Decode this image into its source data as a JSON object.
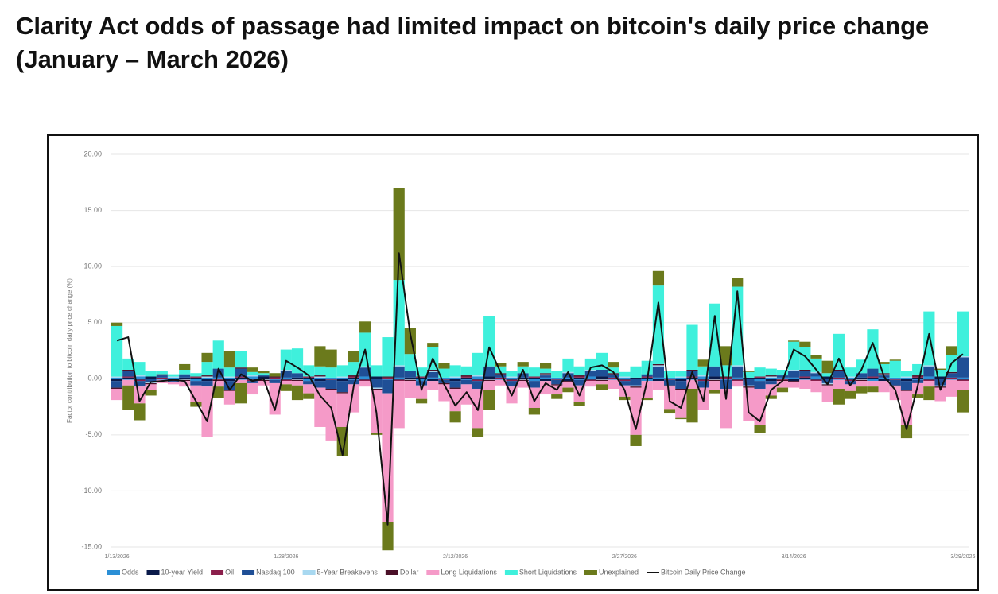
{
  "chart_data": {
    "type": "bar",
    "stacked": true,
    "title": "Clarity Act odds of passage had limited impact on bitcoin's daily price change (January – March 2026)",
    "y_label": "Factor contribution to bitcoin daily price change (%)",
    "ylim": [
      -15,
      20
    ],
    "yticks": [
      {
        "value": -15,
        "label": "-15.00"
      },
      {
        "value": -10,
        "label": "-10.00"
      },
      {
        "value": -5,
        "label": "-5.00"
      },
      {
        "value": 0,
        "label": "0.00"
      },
      {
        "value": 5,
        "label": "5.00"
      },
      {
        "value": 10,
        "label": "10.00"
      },
      {
        "value": 15,
        "label": "15.00"
      },
      {
        "value": 20,
        "label": "20.00"
      }
    ],
    "grid": true,
    "legend": "bottom",
    "categories": [
      "1/13/2026",
      null,
      null,
      null,
      null,
      null,
      null,
      null,
      null,
      null,
      null,
      null,
      null,
      null,
      null,
      "1/28/2026",
      null,
      null,
      null,
      null,
      null,
      null,
      null,
      null,
      null,
      null,
      null,
      null,
      null,
      null,
      "2/12/2026",
      null,
      null,
      null,
      null,
      null,
      null,
      null,
      null,
      null,
      null,
      null,
      null,
      null,
      null,
      "2/27/2026",
      null,
      null,
      null,
      null,
      null,
      null,
      null,
      null,
      null,
      null,
      null,
      null,
      null,
      null,
      "3/14/2026",
      null,
      null,
      null,
      null,
      null,
      null,
      null,
      null,
      null,
      null,
      null,
      null,
      null,
      null,
      "3/29/2026"
    ],
    "series": [
      {
        "name": "Odds",
        "color": "#2b8fd6",
        "values": [
          0.1,
          -0.1,
          0.2,
          0.0,
          -0.1,
          0.1,
          0.0,
          -0.2,
          0.1,
          0.1,
          0.1,
          -0.1,
          0.2,
          0.0,
          -0.1,
          0.1,
          0.0,
          -0.2,
          0.1,
          0.1,
          0.1,
          -0.1,
          0.2,
          0.0,
          -0.1,
          0.1,
          0.0,
          -0.2,
          0.1,
          0.1,
          0.1,
          -0.1,
          0.2,
          0.0,
          -0.1,
          0.1,
          0.0,
          -0.2,
          0.1,
          0.1,
          0.1,
          -0.1,
          0.2,
          0.0,
          -0.1,
          0.1,
          0.0,
          -0.2,
          0.1,
          0.1,
          0.1,
          -0.1,
          0.2,
          0.0,
          -0.1,
          0.1,
          0.0,
          -0.2,
          0.1,
          0.1,
          0.1,
          -0.1,
          0.2,
          0.0,
          -0.1,
          0.1,
          0.0,
          -0.2,
          0.1,
          0.1,
          0.1,
          -0.1,
          0.2,
          0.0,
          -0.1,
          0.1
        ]
      },
      {
        "name": "10-year Yield",
        "color": "#0a1a4a",
        "values": [
          -0.2,
          0.1,
          -0.1,
          0.2,
          0.0,
          -0.1,
          0.1,
          0.1,
          -0.2,
          0.0,
          -0.2,
          0.1,
          -0.1,
          0.2,
          0.0,
          -0.1,
          0.1,
          0.1,
          -0.2,
          0.0,
          -0.2,
          0.1,
          -0.1,
          0.2,
          0.0,
          -0.1,
          0.1,
          0.1,
          -0.2,
          0.0,
          -0.2,
          0.1,
          -0.1,
          0.2,
          0.0,
          -0.1,
          0.1,
          0.1,
          -0.2,
          0.0,
          -0.2,
          0.1,
          -0.1,
          0.2,
          0.0,
          -0.1,
          0.1,
          0.1,
          -0.2,
          0.0,
          -0.2,
          0.1,
          -0.1,
          0.2,
          0.0,
          -0.1,
          0.1,
          0.1,
          -0.2,
          0.0,
          -0.2,
          0.1,
          -0.1,
          0.2,
          0.0,
          -0.1,
          0.1,
          0.1,
          -0.2,
          0.0,
          -0.2,
          0.1,
          -0.1,
          0.2,
          0.0,
          -0.1
        ]
      },
      {
        "name": "Oil",
        "color": "#8b1f4b",
        "values": [
          0.0,
          0.1,
          -0.1,
          0.0,
          0.1,
          -0.1,
          0.0,
          0.1,
          0.0,
          -0.1,
          0.0,
          0.1,
          -0.1,
          0.0,
          0.1,
          -0.1,
          0.0,
          0.1,
          0.0,
          -0.1,
          0.0,
          0.1,
          -0.1,
          0.0,
          0.1,
          -0.1,
          0.0,
          0.1,
          0.0,
          -0.1,
          0.0,
          0.1,
          -0.1,
          0.0,
          0.1,
          -0.1,
          0.0,
          0.1,
          0.0,
          -0.1,
          0.0,
          0.1,
          -0.1,
          0.0,
          0.1,
          -0.1,
          0.0,
          0.1,
          0.0,
          -0.1,
          0.0,
          0.1,
          -0.1,
          0.0,
          0.1,
          -0.1,
          0.0,
          0.1,
          0.0,
          -0.1,
          0.0,
          0.1,
          -0.1,
          0.0,
          0.1,
          -0.1,
          0.0,
          0.1,
          0.0,
          -0.1,
          0.0,
          0.1,
          -0.1,
          0.0,
          0.1,
          -0.1
        ]
      },
      {
        "name": "Nasdaq 100",
        "color": "#1f4f96",
        "values": [
          -0.6,
          0.5,
          -0.5,
          -0.3,
          0.2,
          -0.1,
          0.3,
          -0.4,
          -0.5,
          0.8,
          -0.8,
          0.7,
          -0.2,
          0.1,
          -0.3,
          0.6,
          0.4,
          -0.3,
          -0.6,
          -0.8,
          -1.0,
          -0.4,
          0.8,
          -0.8,
          -1.2,
          1.0,
          0.6,
          -0.4,
          0.5,
          -0.3,
          -0.6,
          -0.4,
          -0.7,
          0.9,
          0.3,
          -0.5,
          0.4,
          -0.6,
          0.2,
          -0.4,
          0.4,
          -0.5,
          0.5,
          0.6,
          0.3,
          -0.4,
          -0.6,
          0.2,
          1.0,
          -0.5,
          -0.7,
          0.5,
          -0.6,
          0.9,
          -0.8,
          1.0,
          -0.6,
          -0.7,
          -0.3,
          0.2,
          0.6,
          0.5,
          0.3,
          -0.4,
          0.6,
          -0.3,
          0.4,
          0.7,
          0.2,
          -0.5,
          -0.8,
          -0.3,
          0.9,
          -0.6,
          0.4,
          1.8
        ]
      },
      {
        "name": "5-Year Breakevens",
        "color": "#a8d8f0",
        "values": [
          0.1,
          0.0,
          0.1,
          -0.1,
          0.0,
          0.1,
          -0.1,
          0.0,
          0.1,
          0.0,
          0.1,
          0.0,
          0.1,
          -0.1,
          0.0,
          0.1,
          -0.1,
          0.0,
          0.1,
          0.0,
          0.1,
          0.0,
          0.1,
          -0.1,
          0.0,
          0.1,
          -0.1,
          0.0,
          0.1,
          0.0,
          0.1,
          0.0,
          0.1,
          -0.1,
          0.0,
          0.1,
          -0.1,
          0.0,
          0.1,
          0.0,
          0.1,
          0.0,
          0.1,
          -0.1,
          0.0,
          0.1,
          -0.1,
          0.0,
          0.1,
          0.0,
          0.1,
          0.0,
          0.1,
          -0.1,
          0.0,
          0.1,
          -0.1,
          0.0,
          0.1,
          0.0,
          0.1,
          0.0,
          0.1,
          -0.1,
          0.0,
          0.1,
          -0.1,
          0.0,
          0.1,
          0.0,
          0.1,
          0.0,
          0.1,
          -0.1,
          0.0,
          0.1
        ]
      },
      {
        "name": "Dollar",
        "color": "#4a1028",
        "values": [
          -0.1,
          0.1,
          0.0,
          -0.1,
          0.1,
          0.0,
          -0.1,
          0.0,
          0.1,
          -0.1,
          -0.1,
          0.1,
          0.0,
          -0.1,
          0.1,
          0.0,
          -0.1,
          0.0,
          0.1,
          -0.1,
          -0.1,
          0.1,
          0.0,
          -0.1,
          0.1,
          0.0,
          -0.1,
          0.0,
          0.1,
          -0.1,
          -0.1,
          0.1,
          0.0,
          -0.1,
          0.1,
          0.0,
          -0.1,
          0.0,
          0.1,
          -0.1,
          -0.1,
          0.1,
          0.0,
          -0.1,
          0.1,
          0.0,
          -0.1,
          0.0,
          0.1,
          -0.1,
          -0.1,
          0.1,
          0.0,
          -0.1,
          0.1,
          0.0,
          -0.1,
          0.0,
          0.1,
          -0.1,
          -0.1,
          0.1,
          0.0,
          -0.1,
          0.1,
          0.0,
          -0.1,
          0.0,
          0.1,
          -0.1,
          -0.1,
          0.1,
          0.0,
          -0.1,
          0.1,
          0.0
        ]
      },
      {
        "name": "Long Liquidations",
        "color": "#f59ac8",
        "values": [
          -1.0,
          -0.5,
          -1.5,
          -0.5,
          -0.3,
          -0.2,
          -0.5,
          -1.5,
          -4.5,
          -0.5,
          -1.2,
          -0.3,
          -1.0,
          -0.4,
          -2.8,
          -0.3,
          -0.4,
          -0.8,
          -3.5,
          -4.5,
          -3.0,
          -2.5,
          -0.5,
          -3.8,
          -11.5,
          -4.2,
          -1.5,
          -1.2,
          -0.8,
          -1.5,
          -2.0,
          -1.8,
          -3.5,
          -0.8,
          -0.5,
          -1.5,
          -0.6,
          -1.8,
          -1.2,
          -0.8,
          -0.5,
          -1.5,
          -0.5,
          -0.3,
          -0.8,
          -1.0,
          -4.2,
          -1.5,
          -0.8,
          -2.0,
          -2.5,
          -0.8,
          -2.0,
          -0.8,
          -3.5,
          -0.5,
          -3.0,
          -3.2,
          -1.0,
          -0.6,
          -0.5,
          -0.8,
          -1.0,
          -1.5,
          -0.8,
          -0.6,
          -0.5,
          -0.5,
          -1.0,
          -1.2,
          -3.0,
          -1.0,
          -0.5,
          -1.2,
          -1.5,
          -0.8
        ]
      },
      {
        "name": "Short Liquidations",
        "color": "#3ff0dc",
        "values": [
          4.5,
          1.0,
          1.2,
          0.5,
          0.3,
          0.2,
          0.4,
          0.3,
          1.2,
          2.5,
          0.8,
          1.5,
          0.3,
          0.2,
          0.0,
          1.8,
          2.2,
          1.0,
          0.8,
          0.9,
          1.0,
          1.2,
          3.0,
          1.0,
          3.5,
          7.6,
          1.5,
          0.8,
          2.0,
          0.8,
          1.0,
          0.8,
          2.0,
          4.5,
          0.6,
          0.5,
          0.6,
          0.8,
          0.4,
          0.6,
          1.2,
          0.8,
          1.0,
          1.5,
          0.5,
          0.4,
          1.0,
          1.2,
          7.0,
          0.6,
          0.5,
          4.0,
          0.8,
          5.6,
          1.0,
          7.0,
          0.5,
          0.8,
          0.6,
          0.5,
          2.5,
          2.0,
          1.2,
          0.3,
          3.2,
          0.8,
          1.2,
          3.5,
          0.8,
          1.5,
          0.5,
          1.0,
          4.8,
          0.6,
          1.5,
          4.0
        ]
      },
      {
        "name": "Unexplained",
        "color": "#6b7a1c",
        "values": [
          0.3,
          -2.2,
          -1.5,
          -0.5,
          0.0,
          0.0,
          0.5,
          -0.4,
          0.8,
          -1.0,
          1.5,
          -1.8,
          0.4,
          0.2,
          0.3,
          -0.6,
          -1.3,
          -0.5,
          1.8,
          1.6,
          -2.6,
          1.0,
          1.0,
          -0.2,
          -2.5,
          8.2,
          2.3,
          -0.4,
          0.4,
          0.5,
          -1.0,
          0.0,
          -0.8,
          -1.8,
          0.3,
          0.0,
          0.4,
          -0.6,
          0.5,
          -0.4,
          -0.4,
          -0.3,
          0.0,
          -0.5,
          0.5,
          -0.3,
          -1.0,
          -0.2,
          1.3,
          -0.4,
          -0.1,
          -3.0,
          0.6,
          -0.3,
          1.7,
          0.8,
          0.1,
          -0.7,
          -0.3,
          -0.4,
          0.1,
          0.5,
          0.3,
          1.1,
          -1.4,
          -0.7,
          -0.6,
          -0.5,
          0.2,
          0.1,
          -1.2,
          -0.3,
          -1.2,
          0.1,
          0.8,
          -2.0
        ]
      }
    ],
    "line_series": {
      "name": "Bitcoin Daily Price Change",
      "color": "#111111",
      "values": [
        3.4,
        3.7,
        -2.0,
        -0.3,
        -0.2,
        -0.1,
        -0.2,
        -2.0,
        -3.8,
        0.9,
        -1.0,
        0.4,
        -0.2,
        0.0,
        -2.8,
        1.6,
        1.0,
        0.3,
        -1.5,
        -2.6,
        -6.8,
        -0.6,
        2.6,
        -3.0,
        -13.0,
        11.2,
        4.0,
        -1.0,
        1.8,
        -0.5,
        -2.4,
        -1.2,
        -2.8,
        2.8,
        0.6,
        -1.5,
        0.8,
        -2.0,
        -0.4,
        -1.0,
        0.6,
        -1.5,
        1.0,
        1.2,
        0.6,
        -1.0,
        -4.5,
        -0.2,
        6.8,
        -2.0,
        -2.6,
        0.6,
        -2.0,
        5.6,
        -1.8,
        7.8,
        -3.0,
        -3.8,
        -1.0,
        -0.2,
        2.6,
        2.0,
        0.8,
        -0.5,
        1.8,
        -0.6,
        0.8,
        3.2,
        0.2,
        -1.0,
        -4.5,
        -0.6,
        4.0,
        -1.0,
        1.4,
        2.2
      ]
    }
  }
}
